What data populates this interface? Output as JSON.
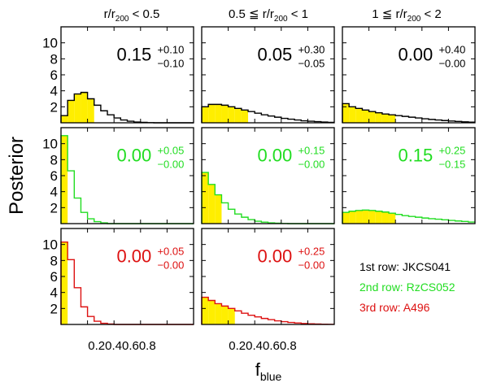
{
  "figure": {
    "ylabel": "Posterior",
    "xlabel_main": "f",
    "xlabel_sub": "blue",
    "col_titles": [
      {
        "pre": "r/r",
        "sub": "200",
        "post": " < 0.5"
      },
      {
        "pre": "0.5 ≦ r/r",
        "sub": "200",
        "post": " < 1"
      },
      {
        "pre": "1 ≦ r/r",
        "sub": "200",
        "post": " < 2"
      }
    ],
    "yticks": [
      "2",
      "4",
      "6",
      "8",
      "10"
    ],
    "xticks_text": "0.20.40.60.8",
    "colors": {
      "row1": "#000000",
      "row2": "#22dd22",
      "row3": "#dd1111",
      "fill": "#ffee00"
    }
  },
  "legend": [
    {
      "label": "1st row: JKCS041",
      "color": "#000000"
    },
    {
      "label": "2nd row: RzCS052",
      "color": "#22dd22"
    },
    {
      "label": "3rd row: A496",
      "color": "#dd1111"
    }
  ],
  "chart_data": {
    "type": "histogram-grid",
    "title": "",
    "xlabel": "f_blue",
    "ylabel": "Posterior",
    "xlim": [
      0,
      1
    ],
    "ylim": [
      0,
      12
    ],
    "bin_width": 0.05,
    "panels": [
      {
        "row": 1,
        "col": 1,
        "annotation": {
          "value": "0.15",
          "plus": "+0.10",
          "minus": "−0.10"
        },
        "shade_upto": 0.25,
        "values": [
          0.9,
          2.8,
          3.6,
          3.8,
          3.0,
          2.2,
          1.5,
          1.0,
          0.6,
          0.35,
          0.2,
          0.1,
          0.05,
          0.02,
          0.0,
          0.0,
          0.0,
          0.0,
          0.0,
          0.0
        ]
      },
      {
        "row": 1,
        "col": 2,
        "annotation": {
          "value": "0.05",
          "plus": "+0.30",
          "minus": "−0.05"
        },
        "shade_upto": 0.35,
        "values": [
          2.0,
          2.3,
          2.3,
          2.2,
          2.0,
          1.8,
          1.6,
          1.4,
          1.2,
          1.0,
          0.85,
          0.7,
          0.55,
          0.45,
          0.35,
          0.25,
          0.2,
          0.15,
          0.1,
          0.05
        ]
      },
      {
        "row": 1,
        "col": 3,
        "annotation": {
          "value": "0.00",
          "plus": "+0.40",
          "minus": "−0.00"
        },
        "shade_upto": 0.4,
        "values": [
          2.4,
          2.0,
          1.8,
          1.6,
          1.4,
          1.25,
          1.1,
          1.0,
          0.9,
          0.8,
          0.7,
          0.6,
          0.5,
          0.42,
          0.35,
          0.28,
          0.22,
          0.17,
          0.12,
          0.08
        ]
      },
      {
        "row": 2,
        "col": 1,
        "annotation": {
          "value": "0.00",
          "plus": "+0.05",
          "minus": "−0.00"
        },
        "shade_upto": 0.05,
        "values": [
          11.0,
          6.6,
          3.2,
          1.4,
          0.6,
          0.25,
          0.1,
          0.0,
          0.0,
          0.0,
          0.0,
          0.0,
          0.0,
          0.0,
          0.0,
          0.0,
          0.0,
          0.0,
          0.0,
          0.0
        ]
      },
      {
        "row": 2,
        "col": 2,
        "annotation": {
          "value": "0.00",
          "plus": "+0.15",
          "minus": "−0.00"
        },
        "shade_upto": 0.15,
        "values": [
          6.4,
          4.9,
          3.6,
          2.6,
          1.8,
          1.2,
          0.8,
          0.5,
          0.3,
          0.18,
          0.1,
          0.05,
          0.02,
          0.0,
          0.0,
          0.0,
          0.0,
          0.0,
          0.0,
          0.0
        ]
      },
      {
        "row": 2,
        "col": 3,
        "annotation": {
          "value": "0.15",
          "plus": "+0.25",
          "minus": "−0.15"
        },
        "shade_upto": 0.4,
        "values": [
          1.4,
          1.55,
          1.65,
          1.7,
          1.65,
          1.55,
          1.45,
          1.3,
          1.15,
          1.0,
          0.9,
          0.8,
          0.7,
          0.62,
          0.55,
          0.48,
          0.4,
          0.33,
          0.27,
          0.2
        ]
      },
      {
        "row": 3,
        "col": 1,
        "annotation": {
          "value": "0.00",
          "plus": "+0.05",
          "minus": "−0.00"
        },
        "shade_upto": 0.05,
        "values": [
          10.3,
          8.1,
          4.6,
          2.2,
          1.0,
          0.4,
          0.15,
          0.05,
          0.0,
          0.0,
          0.0,
          0.0,
          0.0,
          0.0,
          0.0,
          0.0,
          0.0,
          0.0,
          0.0,
          0.0
        ]
      },
      {
        "row": 3,
        "col": 2,
        "annotation": {
          "value": "0.00",
          "plus": "+0.25",
          "minus": "−0.00"
        },
        "shade_upto": 0.25,
        "values": [
          3.4,
          3.0,
          2.6,
          2.3,
          2.0,
          1.7,
          1.4,
          1.15,
          0.95,
          0.75,
          0.6,
          0.45,
          0.35,
          0.25,
          0.18,
          0.12,
          0.08,
          0.05,
          0.03,
          0.02
        ]
      }
    ]
  }
}
